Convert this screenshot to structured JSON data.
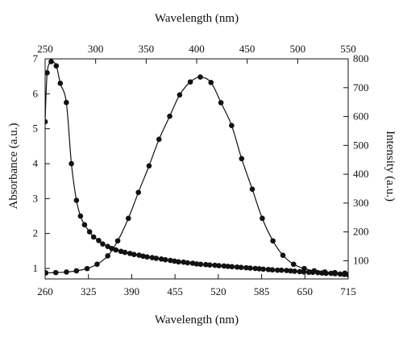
{
  "chart_data": {
    "type": "line",
    "title": "",
    "axes": {
      "bottom": {
        "label": "Wavelength (nm)",
        "range": [
          260,
          715
        ],
        "ticks": [
          260,
          325,
          390,
          455,
          520,
          585,
          650,
          715
        ],
        "tick_labels": [
          "260",
          "325",
          "390",
          "455",
          "520",
          "585",
          "650",
          "715"
        ]
      },
      "top": {
        "label": "Wavelength (nm)",
        "range": [
          250,
          550
        ],
        "ticks": [
          250,
          300,
          350,
          400,
          450,
          500,
          550
        ],
        "tick_labels": [
          "250",
          "300",
          "350",
          "400",
          "450",
          "500",
          "550"
        ]
      },
      "left": {
        "label": "Absorbance (a.u.)",
        "range": [
          0.7,
          7
        ],
        "ticks": [
          1,
          2,
          3,
          4,
          5,
          6,
          7
        ],
        "tick_labels": [
          "1",
          "2",
          "3",
          "4",
          "5",
          "6",
          "7"
        ]
      },
      "right": {
        "label": "Intensity (a.u.)",
        "range": [
          37,
          800
        ],
        "ticks": [
          100,
          200,
          300,
          400,
          500,
          600,
          700,
          800
        ],
        "tick_labels": [
          "100",
          "200",
          "300",
          "400",
          "500",
          "600",
          "700",
          "800"
        ]
      }
    },
    "grid": false,
    "legend": "none",
    "line_color": "#111111",
    "marker": "filled-circle",
    "series": [
      {
        "x_axis": "top",
        "y_axis": "left",
        "x": [
          250,
          252,
          256,
          261,
          265,
          271,
          276,
          281,
          285,
          289,
          294,
          298,
          303,
          307,
          312,
          316,
          320,
          325,
          329,
          334,
          338,
          343,
          347,
          351,
          356,
          360,
          365,
          369,
          374,
          378,
          382,
          387,
          391,
          396,
          400,
          404,
          409,
          413,
          418,
          422,
          427,
          431,
          435,
          440,
          444,
          449,
          453,
          458,
          462,
          466,
          471,
          475,
          480,
          484,
          489,
          493,
          497,
          502,
          506,
          511,
          515,
          520,
          524,
          528,
          533,
          537,
          542,
          546,
          550
        ],
        "y": [
          5.2,
          6.6,
          6.92,
          6.8,
          6.3,
          5.75,
          4.0,
          2.95,
          2.5,
          2.25,
          2.05,
          1.9,
          1.8,
          1.7,
          1.63,
          1.57,
          1.53,
          1.49,
          1.46,
          1.43,
          1.4,
          1.38,
          1.35,
          1.33,
          1.31,
          1.29,
          1.27,
          1.25,
          1.23,
          1.21,
          1.19,
          1.18,
          1.16,
          1.15,
          1.13,
          1.12,
          1.11,
          1.1,
          1.09,
          1.08,
          1.07,
          1.06,
          1.05,
          1.04,
          1.03,
          1.02,
          1.01,
          1.0,
          0.99,
          0.98,
          0.97,
          0.96,
          0.95,
          0.95,
          0.94,
          0.93,
          0.92,
          0.91,
          0.9,
          0.89,
          0.89,
          0.88,
          0.87,
          0.86,
          0.86,
          0.85,
          0.84,
          0.83,
          0.82
        ]
      },
      {
        "x_axis": "bottom",
        "y_axis": "right",
        "x": [
          261,
          276,
          292,
          307,
          323,
          338,
          354,
          369,
          385,
          400,
          416,
          431,
          447,
          462,
          478,
          493,
          509,
          524,
          540,
          555,
          571,
          586,
          602,
          617,
          633,
          649,
          664,
          680,
          695,
          710
        ],
        "y": [
          58,
          59,
          61,
          65,
          73,
          88,
          117,
          169,
          247,
          337,
          429,
          521,
          601,
          675,
          720,
          737,
          718,
          648,
          569,
          454,
          348,
          247,
          169,
          119,
          88,
          73,
          65,
          61,
          59,
          57
        ]
      }
    ]
  }
}
